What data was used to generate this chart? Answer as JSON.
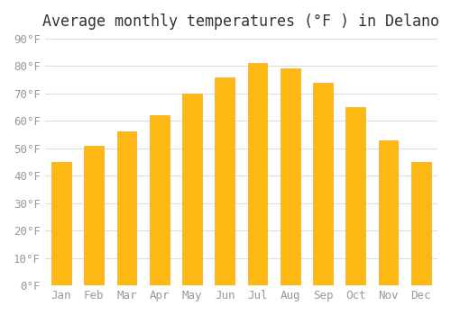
{
  "title": "Average monthly temperatures (°F ) in Delano",
  "months": [
    "Jan",
    "Feb",
    "Mar",
    "Apr",
    "May",
    "Jun",
    "Jul",
    "Aug",
    "Sep",
    "Oct",
    "Nov",
    "Dec"
  ],
  "values": [
    45,
    51,
    56,
    62,
    70,
    76,
    81,
    79,
    74,
    65,
    53,
    45
  ],
  "bar_color": "#FDB813",
  "bar_edge_color": "#F5A623",
  "background_color": "#FFFFFF",
  "grid_color": "#DDDDDD",
  "ylim": [
    0,
    90
  ],
  "yticks": [
    0,
    10,
    20,
    30,
    40,
    50,
    60,
    70,
    80,
    90
  ],
  "title_fontsize": 12,
  "tick_fontsize": 9,
  "tick_color": "#999999"
}
